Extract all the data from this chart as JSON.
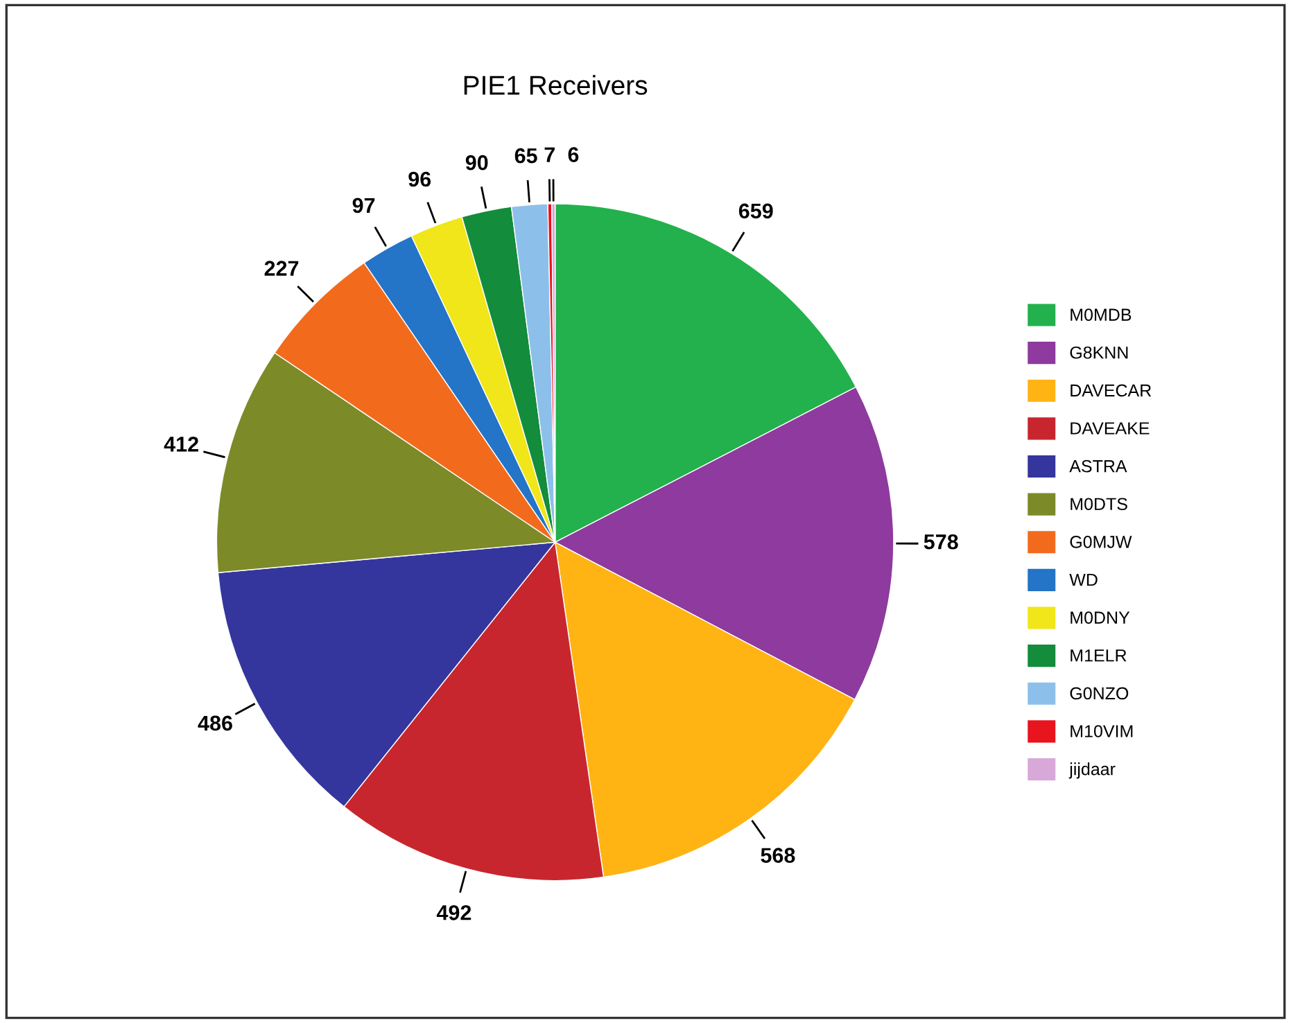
{
  "chart_data": {
    "type": "pie",
    "title": "PIE1 Receivers",
    "categories": [
      "M0MDB",
      "G8KNN",
      "DAVECAR",
      "DAVEAKE",
      "ASTRA",
      "M0DTS",
      "G0MJW",
      "WD",
      "M0DNY",
      "M1ELR",
      "G0NZO",
      "M10VIM",
      "jijdaar"
    ],
    "values": [
      659,
      578,
      568,
      492,
      486,
      412,
      227,
      97,
      96,
      90,
      65,
      7,
      6
    ],
    "colors": [
      "#22b14c",
      "#8e3a9e",
      "#ffb414",
      "#c8262e",
      "#34369e",
      "#7d8a28",
      "#f26b1d",
      "#2474c8",
      "#f0e619",
      "#138c3c",
      "#8cc0ea",
      "#e8141e",
      "#d8a8d8"
    ],
    "data_labels": true,
    "legend": "right"
  }
}
